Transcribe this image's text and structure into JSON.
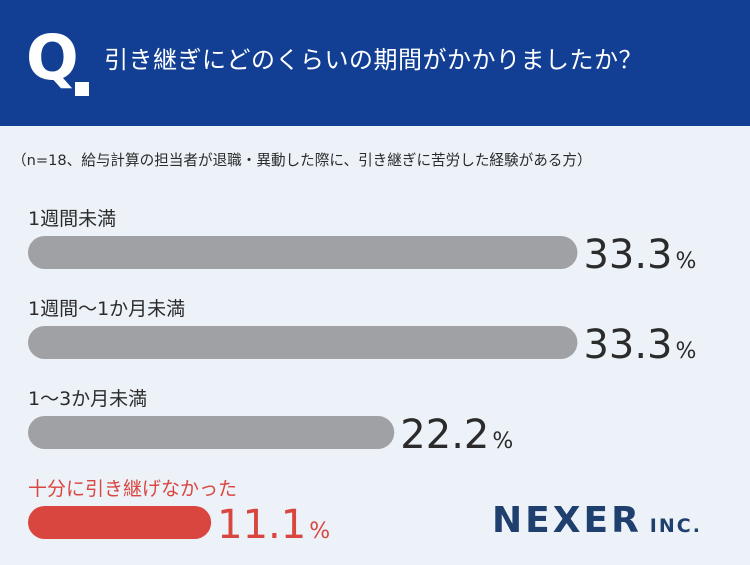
{
  "header": {
    "q_mark": "Q",
    "question": "引き継ぎにどのくらいの期間がかかりましたか？"
  },
  "subtitle": "（n=18、給与計算の担当者が退職・異動した際に、引き継ぎに苦労した経験がある方）",
  "chart_data": {
    "type": "bar",
    "orientation": "horizontal",
    "categories": [
      "1週間未満",
      "1週間〜1か月未満",
      "1〜3か月未満",
      "十分に引き継げなかった"
    ],
    "values": [
      33.3,
      33.3,
      22.2,
      11.1
    ],
    "unit": "%",
    "grid": false,
    "legend": "none"
  },
  "colors": {
    "header_bg": "#123f94",
    "background": "#edf2f9",
    "bar_default": "#a0a1a5",
    "bar_highlight": "#d9463f",
    "label_default": "#2b2b2b",
    "label_highlight": "#d9463f",
    "value_default": "#2b2b2b",
    "value_highlight": "#d9463f",
    "logo": "#1f3f6e"
  },
  "logo": {
    "main": "NEXER",
    "sub": "INC."
  }
}
